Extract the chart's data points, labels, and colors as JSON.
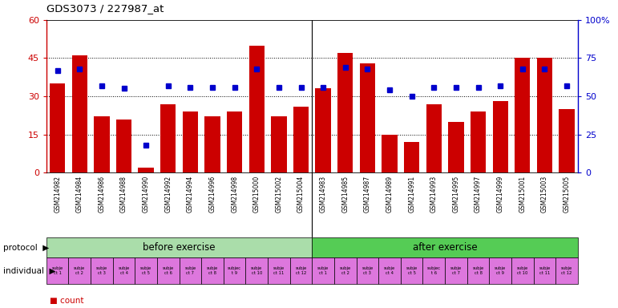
{
  "title": "GDS3073 / 227987_at",
  "gsm_labels": [
    "GSM214982",
    "GSM214984",
    "GSM214986",
    "GSM214988",
    "GSM214990",
    "GSM214992",
    "GSM214994",
    "GSM214996",
    "GSM214998",
    "GSM215000",
    "GSM215002",
    "GSM215004",
    "GSM214983",
    "GSM214985",
    "GSM214987",
    "GSM214989",
    "GSM214991",
    "GSM214993",
    "GSM214995",
    "GSM214997",
    "GSM214999",
    "GSM215001",
    "GSM215003",
    "GSM215005"
  ],
  "counts": [
    35,
    46,
    22,
    21,
    2,
    27,
    24,
    22,
    24,
    50,
    22,
    26,
    33,
    47,
    43,
    15,
    12,
    27,
    20,
    24,
    28,
    45,
    45,
    25
  ],
  "percentile_ranks": [
    67,
    68,
    57,
    55,
    18,
    57,
    56,
    56,
    56,
    68,
    56,
    56,
    56,
    69,
    68,
    54,
    50,
    56,
    56,
    56,
    57,
    68,
    68,
    57
  ],
  "bar_color": "#cc0000",
  "dot_color": "#0000cc",
  "ylim_left": [
    0,
    60
  ],
  "ylim_right": [
    0,
    100
  ],
  "yticks_left": [
    0,
    15,
    30,
    45,
    60
  ],
  "ytick_labels_left": [
    "0",
    "15",
    "30",
    "45",
    "60"
  ],
  "yticks_right": [
    0,
    25,
    50,
    75,
    100
  ],
  "ytick_labels_right": [
    "0",
    "25",
    "50",
    "75",
    "100%"
  ],
  "gridlines_at": [
    15,
    30,
    45
  ],
  "protocol_before": "before exercise",
  "protocol_after": "after exercise",
  "protocol_before_color": "#aaddaa",
  "protocol_after_color": "#55cc55",
  "individual_color": "#dd77dd",
  "individual_labels_before": [
    "subje\nct 1",
    "subje\nct 2",
    "subje\nct 3",
    "subje\nct 4",
    "subje\nct 5",
    "subje\nct 6",
    "subje\nct 7",
    "subje\nct 8",
    "subjec\nt 9",
    "subje\nct 10",
    "subje\nct 11",
    "subje\nct 12"
  ],
  "individual_labels_after": [
    "subje\nct 1",
    "subje\nct 2",
    "subje\nct 3",
    "subje\nct 4",
    "subje\nct 5",
    "subjec\nt 6",
    "subje\nct 7",
    "subje\nct 8",
    "subje\nct 9",
    "subje\nct 10",
    "subje\nct 11",
    "subje\nct 12"
  ],
  "n_before": 12,
  "n_after": 12,
  "xtick_bg": "#cccccc",
  "fig_width": 7.71,
  "fig_height": 3.84,
  "fig_dpi": 100
}
